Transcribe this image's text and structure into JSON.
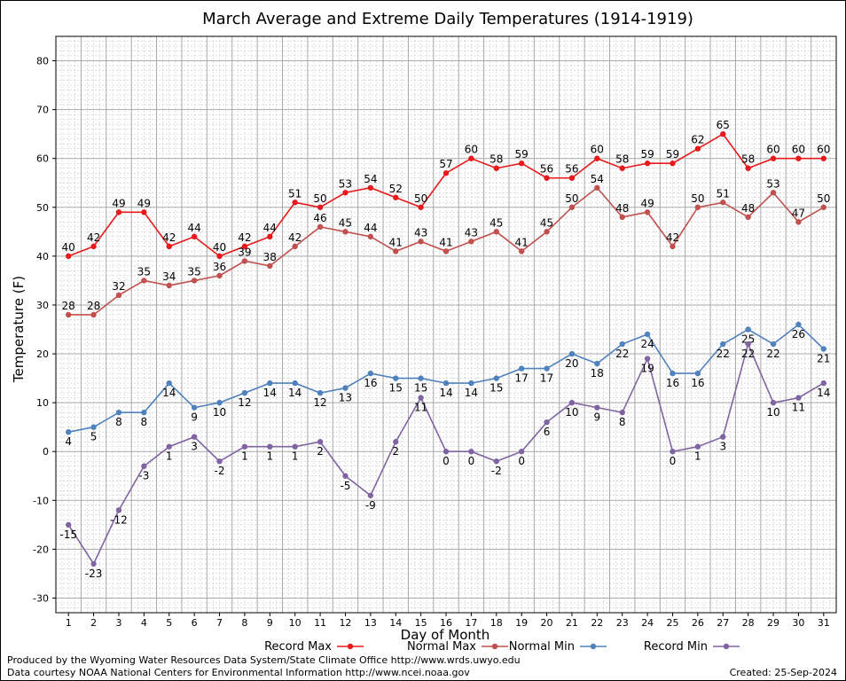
{
  "chart_data": {
    "type": "line",
    "title": "March Average and Extreme Daily Temperatures (1914-1919)",
    "xlabel": "Day of Month",
    "ylabel": "Temperature (F)",
    "ylim": [
      -33,
      85
    ],
    "yticks": [
      -30,
      -20,
      -10,
      0,
      10,
      20,
      30,
      40,
      50,
      60,
      70,
      80
    ],
    "x": [
      1,
      2,
      3,
      4,
      5,
      6,
      7,
      8,
      9,
      10,
      11,
      12,
      13,
      14,
      15,
      16,
      17,
      18,
      19,
      20,
      21,
      22,
      23,
      24,
      25,
      26,
      27,
      28,
      29,
      30,
      31
    ],
    "grid": true,
    "legend_position": "bottom",
    "series": [
      {
        "name": "Record Max",
        "color": "#e8191b",
        "label_position": "above",
        "values": [
          40,
          42,
          49,
          49,
          42,
          44,
          40,
          42,
          44,
          51,
          50,
          53,
          54,
          52,
          50,
          57,
          60,
          58,
          59,
          56,
          56,
          60,
          58,
          59,
          59,
          62,
          65,
          58,
          60,
          60,
          60
        ]
      },
      {
        "name": "Normal Max",
        "color": "#c0504d",
        "label_position": "above",
        "values": [
          28,
          28,
          32,
          35,
          34,
          35,
          36,
          39,
          38,
          42,
          46,
          45,
          44,
          41,
          43,
          41,
          43,
          45,
          41,
          45,
          50,
          54,
          48,
          49,
          42,
          50,
          51,
          48,
          53,
          47,
          50
        ]
      },
      {
        "name": "Normal Min",
        "color": "#4f81bd",
        "label_position": "below",
        "values": [
          4,
          5,
          8,
          8,
          14,
          9,
          10,
          12,
          14,
          14,
          12,
          13,
          16,
          15,
          15,
          14,
          14,
          15,
          17,
          17,
          20,
          18,
          22,
          24,
          16,
          16,
          22,
          25,
          22,
          26,
          21
        ]
      },
      {
        "name": "Record Min",
        "color": "#8064a2",
        "label_position": "below",
        "values": [
          -15,
          -23,
          -12,
          -3,
          1,
          3,
          -2,
          1,
          1,
          1,
          2,
          -5,
          -9,
          2,
          11,
          0,
          0,
          -2,
          0,
          6,
          10,
          9,
          8,
          19,
          0,
          1,
          3,
          22,
          10,
          11,
          14
        ]
      }
    ]
  },
  "footer": {
    "line1": "Produced by the Wyoming Water Resources Data System/State Climate Office http://www.wrds.uwyo.edu",
    "line2": "Data courtesy NOAA National Centers for Environmental Information http://www.ncei.noaa.gov",
    "created": "Created:  25-Sep-2024"
  }
}
